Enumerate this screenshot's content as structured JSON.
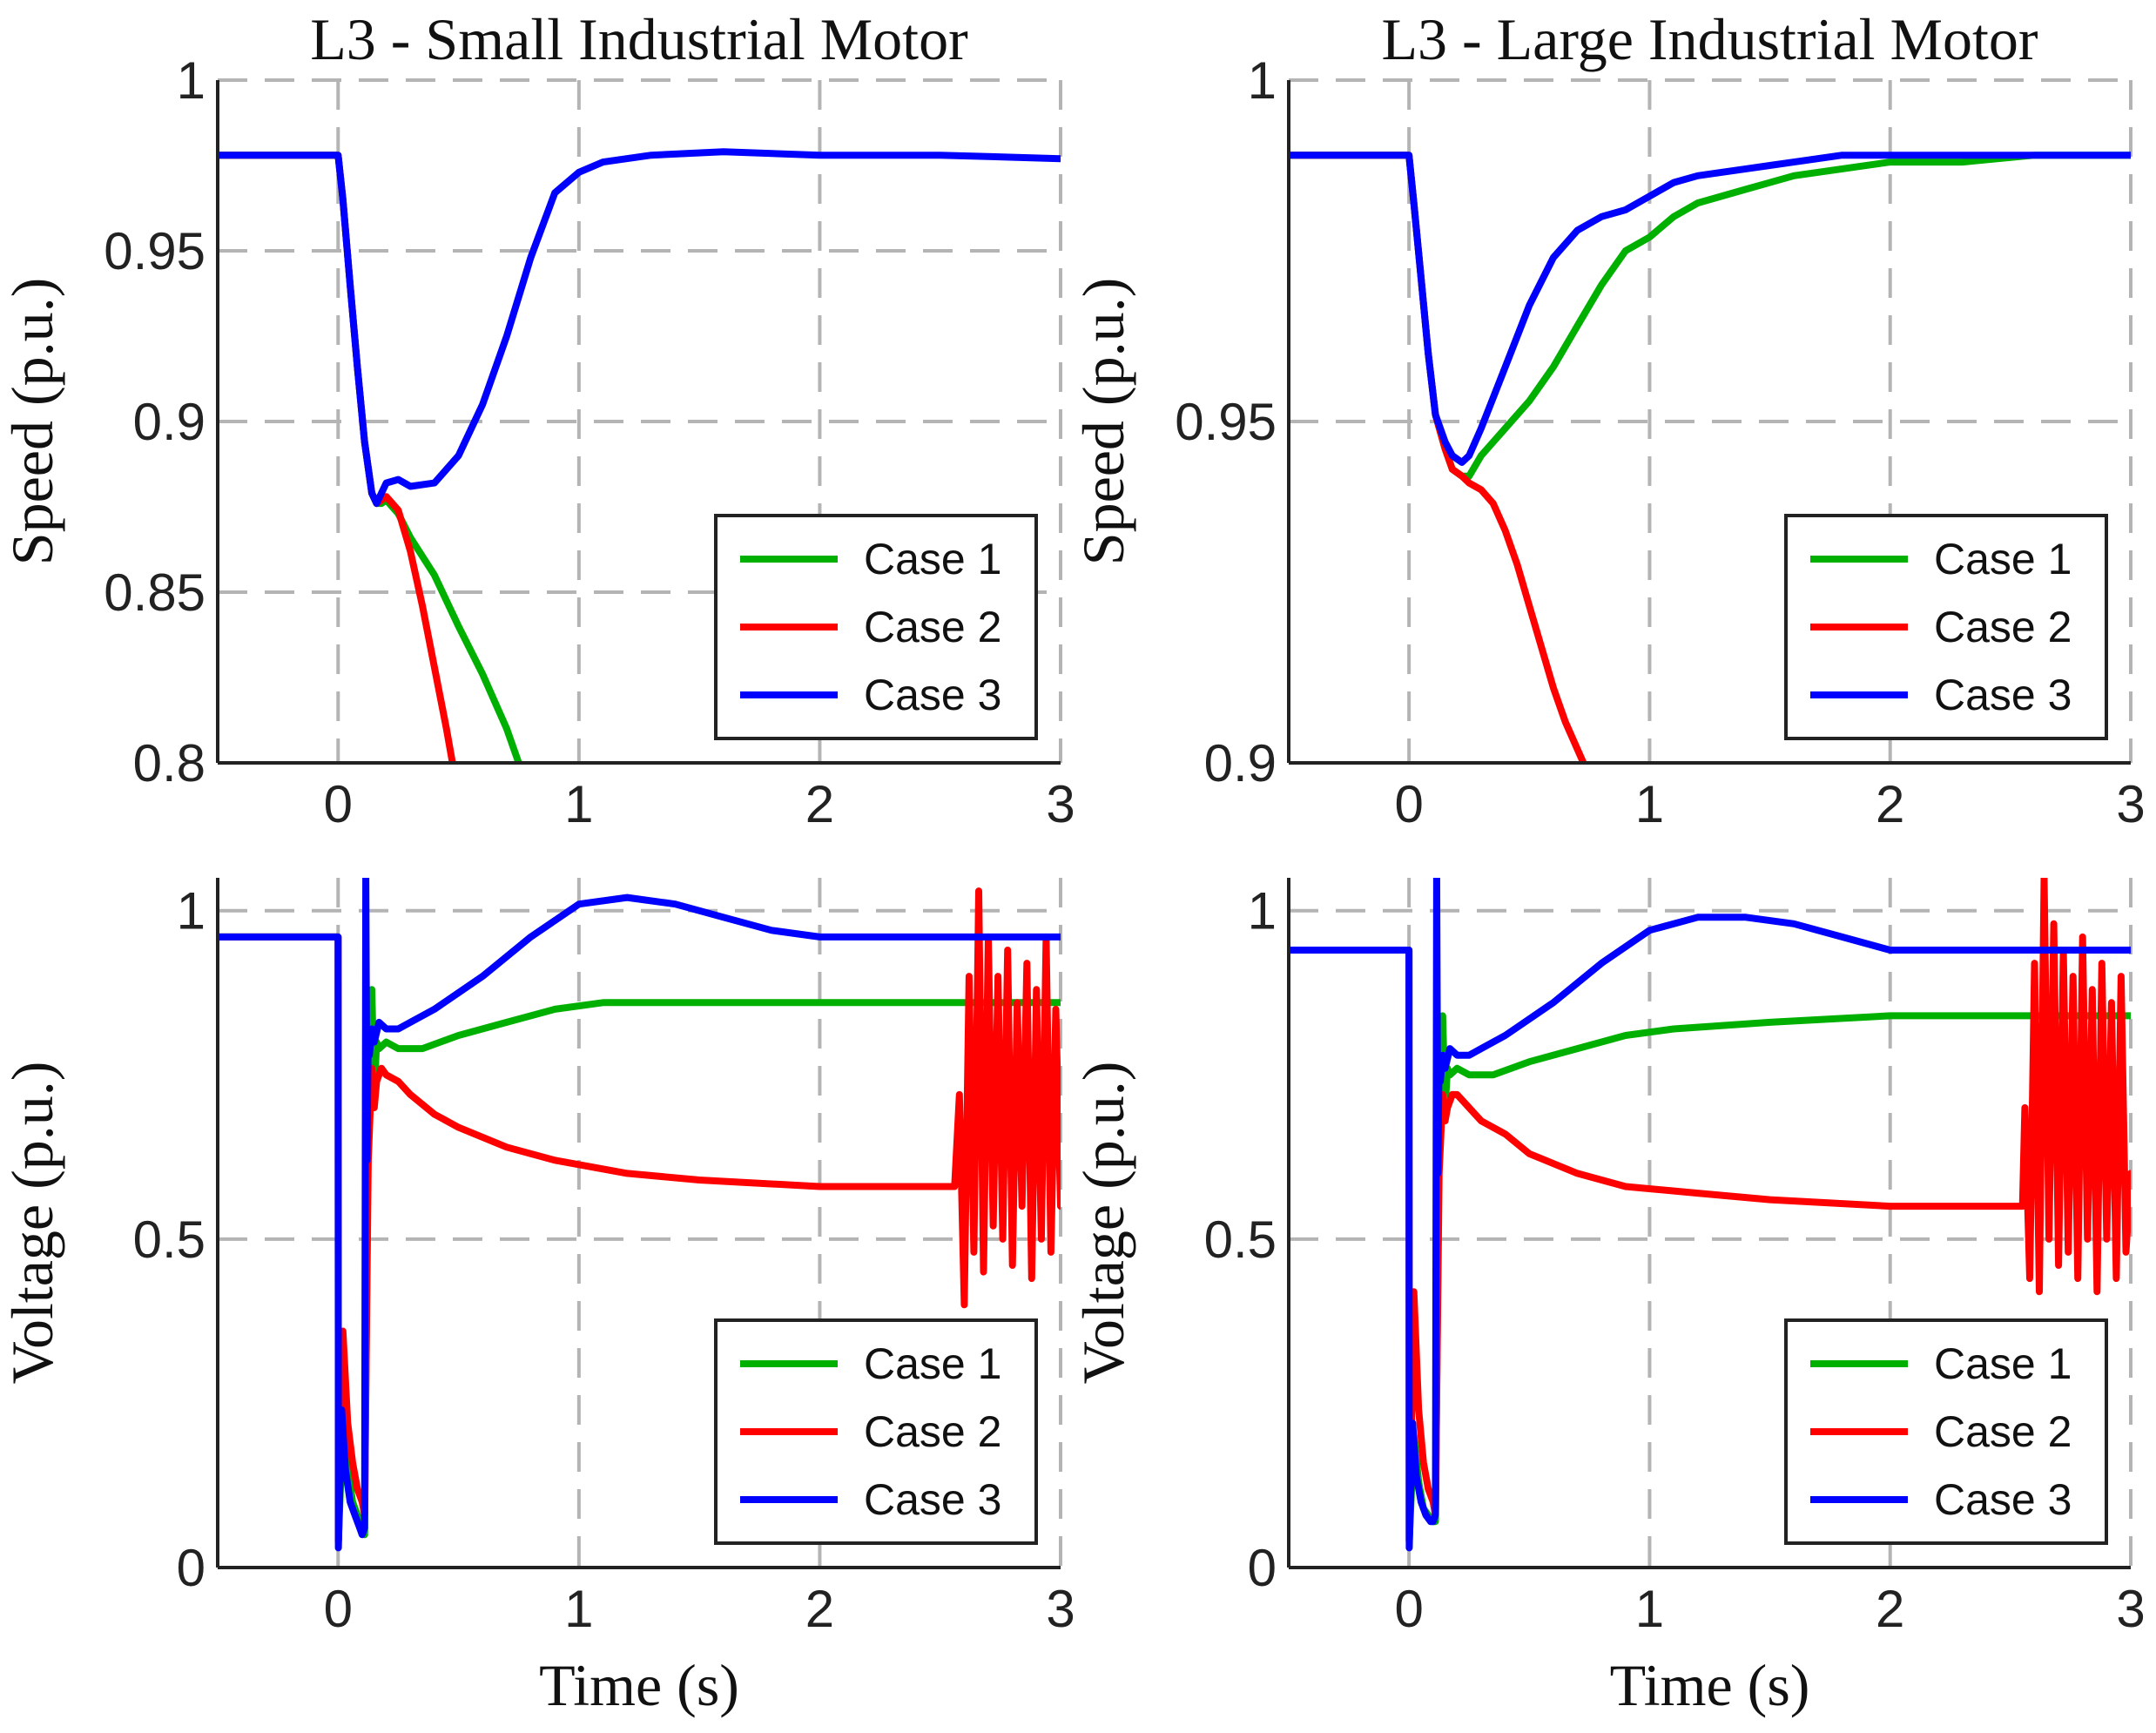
{
  "chart_data": [
    {
      "type": "line",
      "panel": "top-left",
      "title": "L3 - Small Industrial Motor",
      "xlabel": "",
      "ylabel": "Speed (p.u.)",
      "xlim": [
        -0.5,
        3
      ],
      "ylim": [
        0.8,
        1
      ],
      "xticks": [
        "0",
        "1",
        "2",
        "3"
      ],
      "yticks": [
        "0.8",
        "0.85",
        "0.9",
        "0.95",
        "1"
      ],
      "grid": true,
      "legend_position": "bottom-right",
      "series": [
        {
          "name": "Case 1",
          "color": "#00b000",
          "x": [
            -0.5,
            0,
            0.02,
            0.05,
            0.08,
            0.11,
            0.14,
            0.16,
            0.18,
            0.2,
            0.25,
            0.3,
            0.4,
            0.5,
            0.6,
            0.7,
            0.8,
            0.85
          ],
          "y": [
            0.978,
            0.978,
            0.965,
            0.94,
            0.916,
            0.894,
            0.879,
            0.876,
            0.876,
            0.877,
            0.873,
            0.866,
            0.855,
            0.84,
            0.826,
            0.81,
            0.79,
            0.78
          ]
        },
        {
          "name": "Case 2",
          "color": "#ff0000",
          "x": [
            -0.5,
            0,
            0.02,
            0.05,
            0.08,
            0.11,
            0.14,
            0.16,
            0.18,
            0.2,
            0.25,
            0.3,
            0.35,
            0.4,
            0.45,
            0.5,
            0.55
          ],
          "y": [
            0.978,
            0.978,
            0.965,
            0.94,
            0.916,
            0.894,
            0.879,
            0.876,
            0.877,
            0.878,
            0.874,
            0.862,
            0.846,
            0.828,
            0.81,
            0.79,
            0.78
          ]
        },
        {
          "name": "Case 3",
          "color": "#0000ff",
          "x": [
            -0.5,
            0,
            0.02,
            0.05,
            0.08,
            0.11,
            0.14,
            0.16,
            0.2,
            0.25,
            0.3,
            0.4,
            0.5,
            0.6,
            0.7,
            0.8,
            0.9,
            1.0,
            1.1,
            1.3,
            1.6,
            2.0,
            2.5,
            3.0
          ],
          "y": [
            0.978,
            0.978,
            0.965,
            0.94,
            0.916,
            0.894,
            0.879,
            0.876,
            0.882,
            0.883,
            0.881,
            0.882,
            0.89,
            0.905,
            0.925,
            0.948,
            0.967,
            0.973,
            0.976,
            0.978,
            0.979,
            0.978,
            0.978,
            0.977
          ]
        }
      ]
    },
    {
      "type": "line",
      "panel": "top-right",
      "title": "L3 - Large Industrial Motor",
      "xlabel": "",
      "ylabel": "Speed (p.u.)",
      "xlim": [
        -0.5,
        3
      ],
      "ylim": [
        0.9,
        1
      ],
      "xticks": [
        "0",
        "1",
        "2",
        "3"
      ],
      "yticks": [
        "0.9",
        "0.95",
        "1"
      ],
      "grid": true,
      "legend_position": "bottom-right",
      "series": [
        {
          "name": "Case 1",
          "color": "#00b000",
          "x": [
            -0.5,
            0,
            0.02,
            0.05,
            0.08,
            0.11,
            0.15,
            0.18,
            0.22,
            0.25,
            0.3,
            0.4,
            0.5,
            0.6,
            0.7,
            0.8,
            0.9,
            1.0,
            1.1,
            1.2,
            1.4,
            1.6,
            1.8,
            2.0,
            2.3,
            2.6,
            3.0
          ],
          "y": [
            0.989,
            0.989,
            0.982,
            0.971,
            0.96,
            0.951,
            0.946,
            0.943,
            0.942,
            0.942,
            0.945,
            0.949,
            0.953,
            0.958,
            0.964,
            0.97,
            0.975,
            0.977,
            0.98,
            0.982,
            0.984,
            0.986,
            0.987,
            0.988,
            0.988,
            0.989,
            0.989
          ]
        },
        {
          "name": "Case 2",
          "color": "#ff0000",
          "x": [
            -0.5,
            0,
            0.02,
            0.05,
            0.08,
            0.11,
            0.15,
            0.18,
            0.22,
            0.25,
            0.3,
            0.35,
            0.4,
            0.45,
            0.5,
            0.55,
            0.6,
            0.65,
            0.7,
            0.75,
            0.78
          ],
          "y": [
            0.989,
            0.989,
            0.982,
            0.971,
            0.96,
            0.951,
            0.946,
            0.943,
            0.942,
            0.941,
            0.94,
            0.938,
            0.934,
            0.929,
            0.923,
            0.917,
            0.911,
            0.906,
            0.902,
            0.898,
            0.895
          ]
        },
        {
          "name": "Case 3",
          "color": "#0000ff",
          "x": [
            -0.5,
            0,
            0.02,
            0.05,
            0.08,
            0.11,
            0.15,
            0.18,
            0.22,
            0.25,
            0.3,
            0.4,
            0.5,
            0.6,
            0.7,
            0.8,
            0.9,
            1.0,
            1.1,
            1.2,
            1.4,
            1.6,
            1.8,
            2.0,
            2.3,
            2.6,
            3.0
          ],
          "y": [
            0.989,
            0.989,
            0.982,
            0.971,
            0.96,
            0.951,
            0.947,
            0.945,
            0.944,
            0.945,
            0.949,
            0.958,
            0.967,
            0.974,
            0.978,
            0.98,
            0.981,
            0.983,
            0.985,
            0.986,
            0.987,
            0.988,
            0.989,
            0.989,
            0.989,
            0.989,
            0.989
          ]
        }
      ]
    },
    {
      "type": "line",
      "panel": "bottom-left",
      "title": "",
      "xlabel": "Time (s)",
      "ylabel": "Voltage (p.u.)",
      "xlim": [
        -0.5,
        3
      ],
      "ylim": [
        0,
        1.05
      ],
      "xticks": [
        "0",
        "1",
        "2",
        "3"
      ],
      "yticks": [
        "0",
        "0.5",
        "1"
      ],
      "grid": true,
      "legend_position": "bottom-right",
      "series": [
        {
          "name": "Case 1",
          "color": "#00b000",
          "x": [
            -0.5,
            0,
            0.001,
            0.02,
            0.04,
            0.06,
            0.08,
            0.1,
            0.11,
            0.125,
            0.14,
            0.15,
            0.16,
            0.17,
            0.2,
            0.25,
            0.35,
            0.5,
            0.7,
            0.9,
            1.1,
            1.5,
            2.0,
            2.5,
            3.0
          ],
          "y": [
            0.96,
            0.96,
            0.04,
            0.22,
            0.15,
            0.1,
            0.08,
            0.06,
            0.05,
            0.7,
            0.88,
            0.72,
            0.8,
            0.79,
            0.8,
            0.79,
            0.79,
            0.81,
            0.83,
            0.85,
            0.86,
            0.86,
            0.86,
            0.86,
            0.86
          ]
        },
        {
          "name": "Case 2",
          "color": "#ff0000",
          "x": [
            -0.5,
            0,
            0.001,
            0.02,
            0.04,
            0.06,
            0.08,
            0.1,
            0.11,
            0.125,
            0.14,
            0.15,
            0.16,
            0.18,
            0.2,
            0.25,
            0.3,
            0.4,
            0.5,
            0.7,
            0.9,
            1.2,
            1.5,
            2.0,
            2.5,
            2.56,
            2.58,
            2.6,
            2.62,
            2.64,
            2.66,
            2.68,
            2.7,
            2.72,
            2.74,
            2.76,
            2.78,
            2.8,
            2.82,
            2.84,
            2.86,
            2.88,
            2.9,
            2.92,
            2.94,
            2.96,
            2.98,
            3.0
          ],
          "y": [
            0.96,
            0.96,
            0.04,
            0.36,
            0.22,
            0.16,
            0.12,
            0.1,
            0.08,
            0.62,
            0.76,
            0.7,
            0.74,
            0.76,
            0.75,
            0.74,
            0.72,
            0.69,
            0.67,
            0.64,
            0.62,
            0.6,
            0.59,
            0.58,
            0.58,
            0.58,
            0.72,
            0.4,
            0.9,
            0.48,
            1.03,
            0.45,
            0.96,
            0.52,
            0.9,
            0.5,
            0.94,
            0.46,
            0.86,
            0.55,
            0.92,
            0.44,
            0.88,
            0.5,
            0.96,
            0.48,
            0.85,
            0.55
          ]
        },
        {
          "name": "Case 3",
          "color": "#0000ff",
          "x": [
            -0.5,
            0,
            0.001,
            0.015,
            0.03,
            0.05,
            0.07,
            0.09,
            0.1,
            0.11,
            0.115,
            0.12,
            0.125,
            0.13,
            0.14,
            0.15,
            0.17,
            0.2,
            0.25,
            0.3,
            0.4,
            0.6,
            0.8,
            1.0,
            1.2,
            1.4,
            1.6,
            1.8,
            2.0,
            2.3,
            2.6,
            3.0
          ],
          "y": [
            0.96,
            0.96,
            0.03,
            0.24,
            0.15,
            0.1,
            0.08,
            0.06,
            0.05,
            0.06,
            1.06,
            0.62,
            0.82,
            0.78,
            0.82,
            0.8,
            0.83,
            0.82,
            0.82,
            0.83,
            0.85,
            0.9,
            0.96,
            1.01,
            1.02,
            1.01,
            0.99,
            0.97,
            0.96,
            0.96,
            0.96,
            0.96
          ]
        }
      ]
    },
    {
      "type": "line",
      "panel": "bottom-right",
      "title": "",
      "xlabel": "Time (s)",
      "ylabel": "Voltage (p.u.)",
      "xlim": [
        -0.5,
        3
      ],
      "ylim": [
        0,
        1.05
      ],
      "xticks": [
        "0",
        "1",
        "2",
        "3"
      ],
      "yticks": [
        "0",
        "0.5",
        "1"
      ],
      "grid": true,
      "legend_position": "bottom-right",
      "series": [
        {
          "name": "Case 1",
          "color": "#00b000",
          "x": [
            -0.5,
            0,
            0.001,
            0.02,
            0.04,
            0.06,
            0.08,
            0.1,
            0.11,
            0.125,
            0.14,
            0.15,
            0.16,
            0.17,
            0.2,
            0.25,
            0.35,
            0.5,
            0.7,
            0.9,
            1.1,
            1.5,
            2.0,
            2.5,
            3.0
          ],
          "y": [
            0.94,
            0.94,
            0.04,
            0.2,
            0.13,
            0.09,
            0.08,
            0.07,
            0.07,
            0.66,
            0.84,
            0.7,
            0.76,
            0.75,
            0.76,
            0.75,
            0.75,
            0.77,
            0.79,
            0.81,
            0.82,
            0.83,
            0.84,
            0.84,
            0.84
          ]
        },
        {
          "name": "Case 2",
          "color": "#ff0000",
          "x": [
            -0.5,
            0,
            0.001,
            0.02,
            0.04,
            0.06,
            0.08,
            0.1,
            0.11,
            0.125,
            0.14,
            0.15,
            0.16,
            0.18,
            0.2,
            0.25,
            0.3,
            0.4,
            0.5,
            0.7,
            0.9,
            1.2,
            1.5,
            2.0,
            2.55,
            2.56,
            2.58,
            2.6,
            2.62,
            2.64,
            2.66,
            2.68,
            2.7,
            2.72,
            2.74,
            2.76,
            2.78,
            2.8,
            2.82,
            2.84,
            2.86,
            2.88,
            2.9,
            2.92,
            2.94,
            2.96,
            2.98,
            3.0
          ],
          "y": [
            0.94,
            0.94,
            0.04,
            0.42,
            0.24,
            0.16,
            0.12,
            0.1,
            0.08,
            0.6,
            0.72,
            0.68,
            0.7,
            0.72,
            0.72,
            0.7,
            0.68,
            0.66,
            0.63,
            0.6,
            0.58,
            0.57,
            0.56,
            0.55,
            0.55,
            0.7,
            0.44,
            0.92,
            0.42,
            1.05,
            0.5,
            0.98,
            0.46,
            0.94,
            0.48,
            0.9,
            0.44,
            0.96,
            0.5,
            0.88,
            0.42,
            0.92,
            0.5,
            0.86,
            0.44,
            0.9,
            0.48,
            0.6
          ]
        },
        {
          "name": "Case 3",
          "color": "#0000ff",
          "x": [
            -0.5,
            0,
            0.001,
            0.015,
            0.03,
            0.05,
            0.07,
            0.09,
            0.1,
            0.11,
            0.115,
            0.12,
            0.125,
            0.13,
            0.14,
            0.15,
            0.17,
            0.2,
            0.25,
            0.3,
            0.4,
            0.6,
            0.8,
            1.0,
            1.2,
            1.4,
            1.6,
            1.8,
            2.0,
            2.3,
            2.6,
            3.0
          ],
          "y": [
            0.94,
            0.94,
            0.03,
            0.22,
            0.14,
            0.1,
            0.08,
            0.07,
            0.07,
            0.08,
            1.06,
            0.6,
            0.78,
            0.74,
            0.78,
            0.76,
            0.79,
            0.78,
            0.78,
            0.79,
            0.81,
            0.86,
            0.92,
            0.97,
            0.99,
            0.99,
            0.98,
            0.96,
            0.94,
            0.94,
            0.94,
            0.94
          ]
        }
      ]
    }
  ]
}
